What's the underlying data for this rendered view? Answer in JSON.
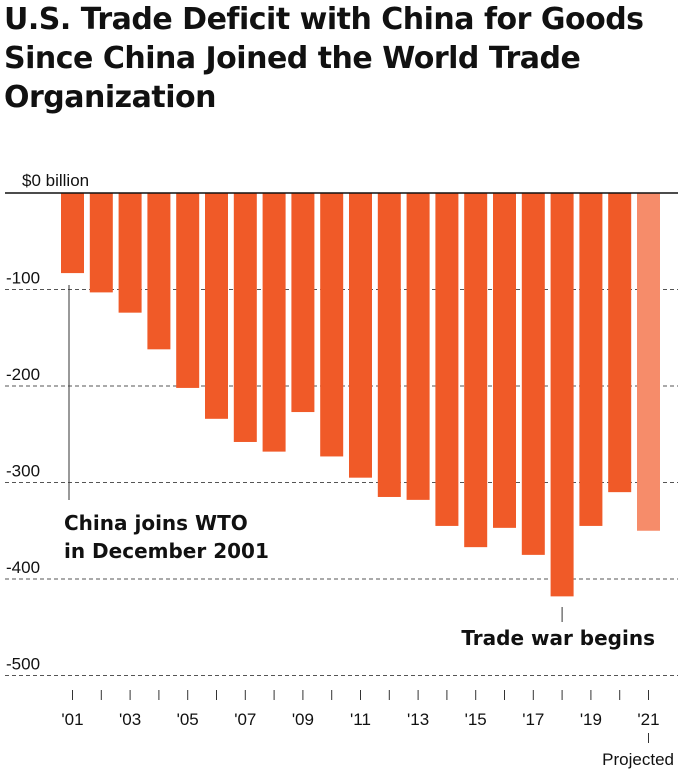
{
  "title": "U.S. Trade Deficit with China for Goods Since China Joined the World Trade Organization",
  "colors": {
    "bar": "#f05a28",
    "projected": "#f68c6a",
    "grid": "#555555",
    "axis": "#111111"
  },
  "chart_data": {
    "type": "bar",
    "title": "U.S. Trade Deficit with China for Goods Since China Joined the World Trade Organization",
    "ylabel": "$0 billion",
    "ylim": [
      -510,
      0
    ],
    "yticks": [
      {
        "value": 0,
        "label": "$0 billion"
      },
      {
        "value": -100,
        "label": "-100"
      },
      {
        "value": -200,
        "label": "-200"
      },
      {
        "value": -300,
        "label": "-300"
      },
      {
        "value": -400,
        "label": "-400"
      },
      {
        "value": -500,
        "label": "-500"
      }
    ],
    "categories": [
      "2001",
      "2002",
      "2003",
      "2004",
      "2005",
      "2006",
      "2007",
      "2008",
      "2009",
      "2010",
      "2011",
      "2012",
      "2013",
      "2014",
      "2015",
      "2016",
      "2017",
      "2018",
      "2019",
      "2020",
      "2021"
    ],
    "xticklabels": [
      "'01",
      "",
      "'03",
      "",
      "'05",
      "",
      "'07",
      "",
      "'09",
      "",
      "'11",
      "",
      "'13",
      "",
      "'15",
      "",
      "'17",
      "",
      "'19",
      "",
      "'21"
    ],
    "values": [
      -83,
      -103,
      -124,
      -162,
      -202,
      -234,
      -258,
      -268,
      -227,
      -273,
      -295,
      -315,
      -318,
      -345,
      -367,
      -347,
      -375,
      -418,
      -345,
      -310,
      -350
    ],
    "projected_index": 20,
    "projected_label": "Projected",
    "grid": true,
    "annotations": [
      {
        "text_lines": [
          "China joins WTO",
          "in December 2001"
        ],
        "index": 0
      },
      {
        "text_lines": [
          "Trade war begins"
        ],
        "index": 17
      }
    ]
  }
}
